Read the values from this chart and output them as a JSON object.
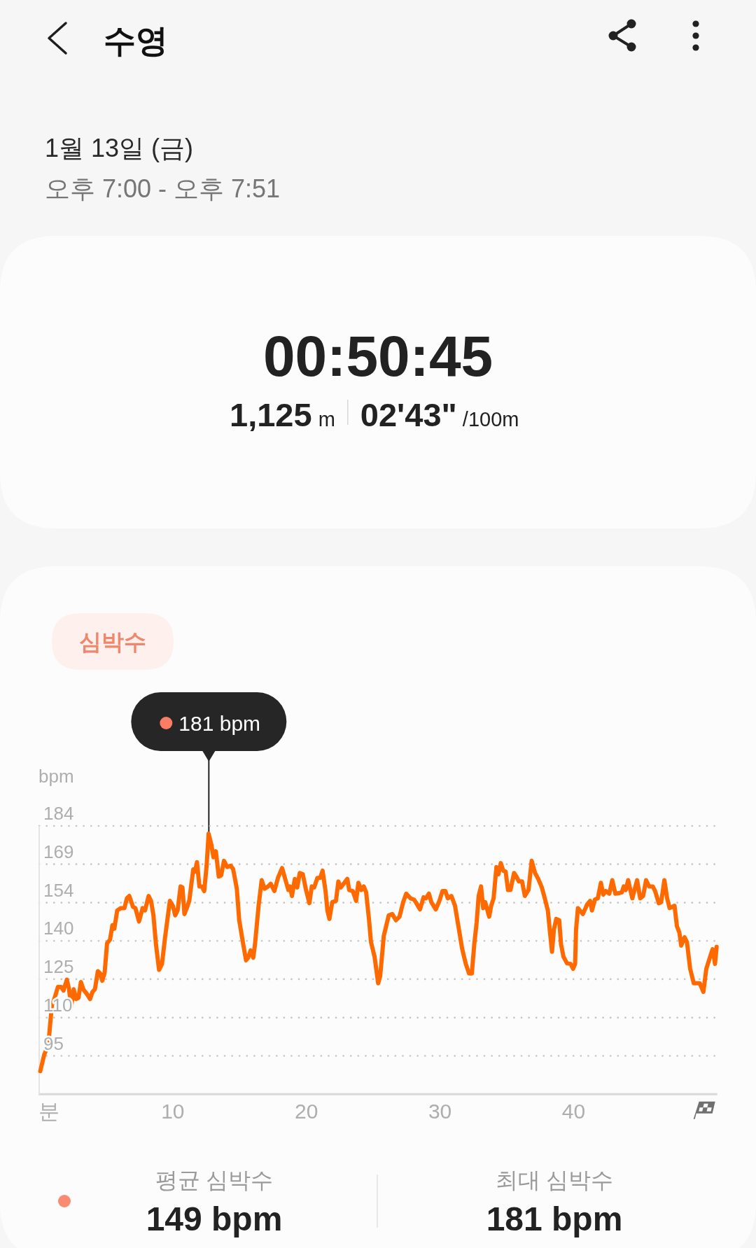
{
  "chart_data": {
    "type": "line",
    "title": "수영",
    "subtitle": "1월 13일 (금)",
    "xlabel": "분",
    "ylabel": "bpm",
    "annotations": [
      "오후 7:00 - 오후 7:51",
      "00:50:45",
      "1,125",
      "m",
      "02'43\"",
      "/100m",
      "심박수",
      {
        "text": "181 bpm",
        "x": 12.68,
        "y": 181
      },
      "평균 심박수",
      "149 bpm",
      "최대 심박수",
      "181 bpm"
    ],
    "series": [
      {
        "color": "#ff6a00",
        "x": [
          0.08,
          0.37,
          0.68,
          0.95,
          1.13,
          1.4,
          1.64,
          1.82,
          2.07,
          2.22,
          2.4,
          2.58,
          2.76,
          2.94,
          3.12,
          3.3,
          3.58,
          3.81,
          3.99,
          4.17,
          4.39,
          4.57,
          4.72,
          4.9,
          5.08,
          5.3,
          5.48,
          5.62,
          5.84,
          6.11,
          6.38,
          6.56,
          6.74,
          7.02,
          7.2,
          7.47,
          7.74,
          7.92,
          8.19,
          8.37,
          8.55,
          8.74,
          8.97,
          9.19,
          9.42,
          9.78,
          10.0,
          10.18,
          10.36,
          10.58,
          10.72,
          10.87,
          11.08,
          11.23,
          11.53,
          11.66,
          11.81,
          11.99,
          12.17,
          12.35,
          12.53,
          12.68,
          12.89,
          13.04,
          13.22,
          13.44,
          13.62,
          13.83,
          14.07,
          14.34,
          14.52,
          14.79,
          14.97,
          15.24,
          15.48,
          15.64,
          15.82,
          16.02,
          16.15,
          16.42,
          16.65,
          16.87,
          17.14,
          17.33,
          17.6,
          17.87,
          18.18,
          18.41,
          18.65,
          18.77,
          18.92,
          19.13,
          19.31,
          19.5,
          19.73,
          19.95,
          20.22,
          20.4,
          20.58,
          20.82,
          21.03,
          21.21,
          21.43,
          21.57,
          21.72,
          21.93,
          22.21,
          22.39,
          22.57,
          22.84,
          23.06,
          23.2,
          23.47,
          23.72,
          23.89,
          24.11,
          24.29,
          24.47,
          24.69,
          24.83,
          25.1,
          25.37,
          25.52,
          25.79,
          26.16,
          26.43,
          26.7,
          26.97,
          27.24,
          27.47,
          27.78,
          28.05,
          28.23,
          28.5,
          28.77,
          28.95,
          29.17,
          29.35,
          29.68,
          29.95,
          30.18,
          30.4,
          30.58,
          30.85,
          31.12,
          31.39,
          31.66,
          31.93,
          32.17,
          32.38,
          32.56,
          32.74,
          32.89,
          33.07,
          33.23,
          33.38,
          33.68,
          33.83,
          34.01,
          34.22,
          34.37,
          34.55,
          34.73,
          34.91,
          35.09,
          35.27,
          35.54,
          35.72,
          35.9,
          36.14,
          36.35,
          36.62,
          36.86,
          37.11,
          37.35,
          37.62,
          37.89,
          38.07,
          38.25,
          38.38,
          38.52,
          38.7,
          38.92,
          39.06,
          39.24,
          39.51,
          39.78,
          39.96,
          40.11,
          40.18,
          40.32,
          40.69,
          41.01,
          41.23,
          41.37,
          41.59,
          41.81,
          42.04,
          42.22,
          42.4,
          42.67,
          42.89,
          43.12,
          43.39,
          43.61,
          43.75,
          43.9,
          44.08,
          44.39,
          44.75,
          44.98,
          45.2,
          45.42,
          45.65,
          45.92,
          46.1,
          46.37,
          46.55,
          46.79,
          47.0,
          47.18,
          47.55,
          47.73,
          47.91,
          48.05,
          48.3,
          48.48,
          48.72,
          48.99,
          49.44,
          49.71,
          49.93,
          50.16,
          50.4,
          50.58,
          50.7
        ],
        "values": [
          89.1,
          95.4,
          99.2,
          114.7,
          117.0,
          121.7,
          121.7,
          120.3,
          124.5,
          121.2,
          114.2,
          120.8,
          117.0,
          117.5,
          123.6,
          120.8,
          118.9,
          117.0,
          119.8,
          120.8,
          127.8,
          126.9,
          124.1,
          127.3,
          138.6,
          140.0,
          145.6,
          144.2,
          151.3,
          152.2,
          152.2,
          156.0,
          156.9,
          152.7,
          152.2,
          147.0,
          152.2,
          151.3,
          156.9,
          155.0,
          149.4,
          138.1,
          128.3,
          130.6,
          140.9,
          155.0,
          153.1,
          149.4,
          151.3,
          160.6,
          160.2,
          149.9,
          152.7,
          155.0,
          167.2,
          166.3,
          170.0,
          160.6,
          160.6,
          158.8,
          168.6,
          181,
          176.6,
          171.9,
          174.2,
          164.4,
          164.9,
          170.5,
          168.1,
          168.6,
          167.2,
          159.7,
          147.5,
          139.1,
          132.0,
          133.0,
          135.8,
          133.0,
          138.1,
          153.1,
          163.0,
          159.7,
          160.6,
          161.6,
          158.8,
          163.9,
          167.7,
          163.5,
          159.2,
          160.6,
          156.9,
          163.5,
          160.2,
          165.8,
          165.3,
          159.7,
          154.1,
          160.6,
          160.2,
          163.9,
          163.9,
          166.7,
          158.8,
          151.3,
          148.0,
          154.5,
          155.0,
          162.5,
          160.2,
          162.0,
          163.5,
          159.2,
          158.8,
          155.0,
          162.0,
          159.2,
          160.6,
          158.3,
          147.5,
          139.1,
          133.4,
          123.1,
          125.9,
          141.4,
          149.4,
          149.9,
          147.5,
          148.9,
          154.5,
          157.8,
          156.0,
          155.5,
          154.1,
          151.7,
          156.4,
          156.0,
          157.8,
          154.5,
          151.7,
          155.0,
          158.8,
          158.8,
          156.0,
          156.9,
          153.1,
          144.7,
          136.3,
          130.6,
          126.9,
          126.9,
          138.1,
          146.6,
          156.9,
          160.6,
          152.2,
          154.5,
          148.9,
          153.1,
          156.0,
          168.1,
          165.3,
          169.6,
          166.7,
          166.3,
          159.2,
          159.2,
          165.8,
          164.4,
          162.5,
          162.5,
          156.9,
          159.2,
          170.5,
          165.8,
          163.5,
          160.2,
          155.0,
          151.3,
          141.9,
          135.3,
          143.8,
          148.0,
          147.5,
          138.1,
          133.4,
          130.8,
          130.6,
          128.7,
          130.6,
          143.8,
          152.2,
          149.9,
          153.6,
          155.0,
          151.3,
          155.5,
          156.0,
          162.0,
          157.4,
          158.8,
          157.8,
          163.0,
          157.8,
          158.0,
          158.3,
          160.6,
          159.2,
          163.0,
          156.0,
          163.0,
          156.0,
          156.9,
          163.0,
          160.6,
          160.6,
          158.8,
          154.1,
          154.5,
          163.0,
          156.0,
          152.2,
          153.1,
          145.2,
          142.8,
          137.7,
          140.9,
          139.1,
          128.7,
          123.1,
          123.1,
          119.8,
          128.7,
          132.5,
          136.3,
          130.6,
          137.2
        ]
      }
    ],
    "xlim": [
      0,
      50.75
    ],
    "xticks": [
      10,
      20,
      30,
      40
    ],
    "ylim": [
      80.2,
      184
    ],
    "yticks": [
      95,
      {
        "value": 109.8,
        "label": "110"
      },
      {
        "value": 124.7,
        "label": "125"
      },
      {
        "value": 139.5,
        "label": "140"
      },
      {
        "value": 154.3,
        "label": "154"
      },
      {
        "value": 169.2,
        "label": "169"
      },
      184
    ],
    "grid": "y",
    "line_style": "solid"
  }
}
